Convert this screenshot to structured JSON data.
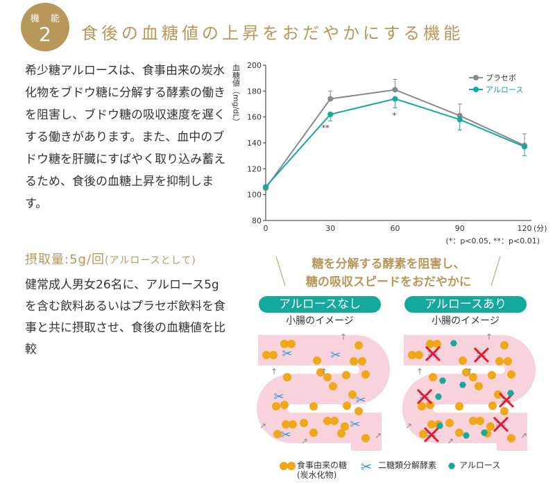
{
  "badge": {
    "label": "機 能",
    "number": "2"
  },
  "title": "食後の血糖値の上昇をおだやかにする機能",
  "description": "希少糖アルロースは、食事由来の炭水化物をブドウ糖に分解する酵素の働きを阻害し、ブドウ糖の吸収速度を遅くする働きがあります。また、血中のブドウ糖を肝臓にすばやく取り込み蓄えるため、食後の血糖上昇を抑制します。",
  "dose": {
    "label": "摂取量:5g/回",
    "note": "(アルロースとして)"
  },
  "study": "健常成人男女26名に、アルロース5gを含む飲料あるいはプラセボ飲料を食事と共に摂取させ、食後の血糖値を比較",
  "chart_data": {
    "type": "line",
    "ylabel": "血糖値（mg/dL）",
    "xunit": "(分)",
    "x": [
      0,
      30,
      60,
      90,
      120
    ],
    "xticks": [
      "0",
      "30",
      "60",
      "90",
      "120"
    ],
    "yticks": [
      "80",
      "100",
      "120",
      "140",
      "160",
      "180",
      "200"
    ],
    "ylim": [
      80,
      200
    ],
    "series": [
      {
        "name": "プラセボ",
        "color": "#888888",
        "values": [
          105,
          174,
          181,
          161,
          138
        ],
        "error": [
          0,
          6,
          8,
          9,
          9
        ]
      },
      {
        "name": "アルロース",
        "color": "#15a89f",
        "values": [
          106,
          162,
          174,
          158,
          137
        ],
        "error": [
          0,
          5,
          7,
          8,
          7
        ]
      }
    ],
    "significance": [
      {
        "x": 30,
        "label": "**"
      },
      {
        "x": 60,
        "label": "*"
      }
    ],
    "footnote": "(*：p<0.05, **：p<0.01)",
    "legend": "top-right"
  },
  "diagram": {
    "heading1": "糖を分解する酵素を阻害し、",
    "heading2": "糖の吸収スピードをおだやかに",
    "left_label": "アルロースなし",
    "right_label": "アルロースあり",
    "sub_label": "小腸のイメージ",
    "legend": {
      "sugar": "食事由来の糖",
      "sugar2": "(炭水化物)",
      "enzyme": "二糖類分解酵素",
      "allulose": "アルロース"
    },
    "colors": {
      "sugar": "#f0a818",
      "enzyme": "#2a9ad8",
      "allulose": "#16a89a",
      "intestine": "#f9d3dc",
      "cross": "#e6182a"
    }
  }
}
